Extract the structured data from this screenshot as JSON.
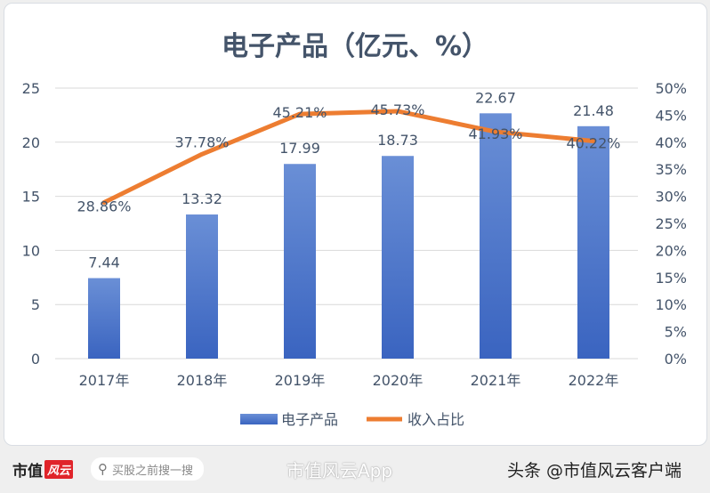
{
  "chart_data": {
    "type": "bar+line",
    "title": "电子产品（亿元、%）",
    "categories": [
      "2017年",
      "2018年",
      "2019年",
      "2020年",
      "2021年",
      "2022年"
    ],
    "series": [
      {
        "name": "电子产品",
        "type": "bar",
        "axis": "left",
        "values": [
          7.44,
          13.32,
          17.99,
          18.73,
          22.67,
          21.48
        ],
        "labels": [
          "7.44",
          "13.32",
          "17.99",
          "18.73",
          "22.67",
          "21.48"
        ],
        "color": "#4472c4"
      },
      {
        "name": "收入占比",
        "type": "line",
        "axis": "right",
        "values": [
          28.86,
          37.78,
          45.21,
          45.73,
          41.93,
          40.22
        ],
        "labels": [
          "28.86%",
          "37.78%",
          "45.21%",
          "45.73%",
          "41.93%",
          "40.22%"
        ],
        "color": "#ed7d31"
      }
    ],
    "yleft": {
      "ylim": [
        0,
        25
      ],
      "ticks": [
        "0",
        "5",
        "10",
        "15",
        "20",
        "25"
      ]
    },
    "yright": {
      "ylim": [
        0,
        50
      ],
      "ticks": [
        "0%",
        "5%",
        "10%",
        "15%",
        "20%",
        "25%",
        "30%",
        "35%",
        "40%",
        "45%",
        "50%"
      ]
    },
    "grid": true,
    "legend": "bottom"
  },
  "watermark": "市值风云",
  "footer": {
    "logo_text": "市值",
    "logo_badge": "风云",
    "search_placeholder": "买股之前搜一搜",
    "weibo": "市值风云App",
    "toutiao": "头条 @市值风云客户端"
  }
}
